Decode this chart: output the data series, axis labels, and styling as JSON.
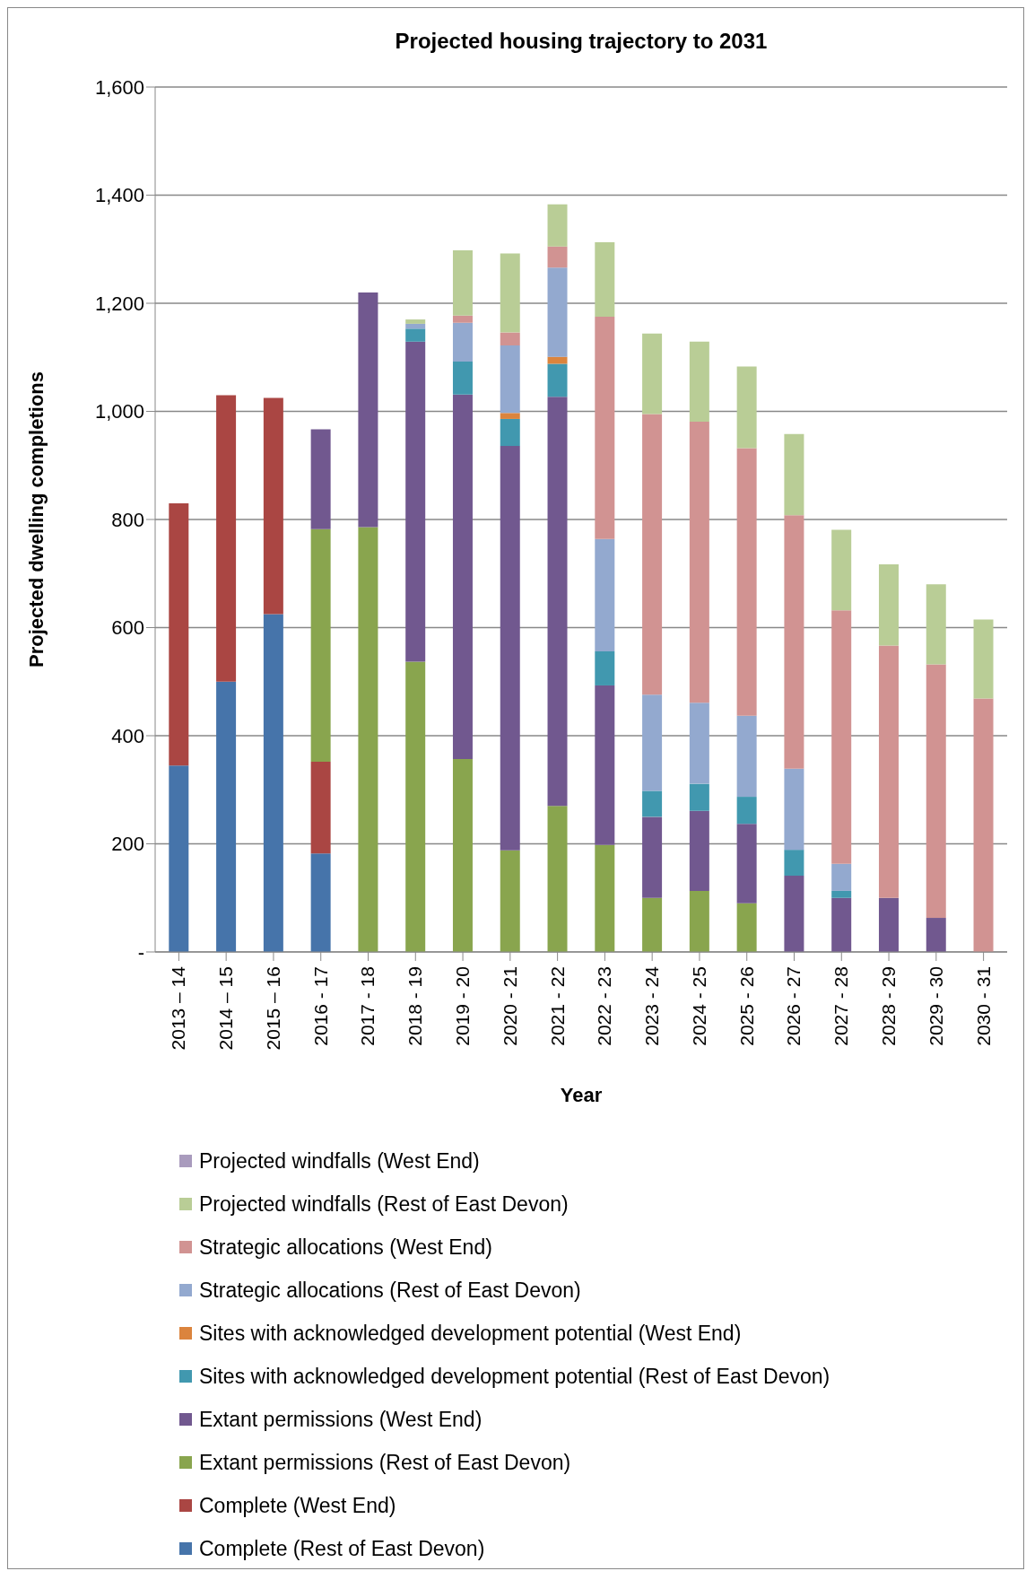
{
  "chart_data": {
    "type": "bar",
    "title": "Projected housing trajectory to 2031",
    "xlabel": "Year",
    "ylabel": "Projected dwelling completions",
    "stacked": true,
    "grid": "y",
    "legend": "bottom",
    "categories": [
      "2013 – 14",
      "2014 – 15",
      "2015 – 16",
      "2016 - 17",
      "2017 - 18",
      "2018 - 19",
      "2019 - 20",
      "2020 - 21",
      "2021 - 22",
      "2022 - 23",
      "2023 - 24",
      "2024 - 25",
      "2025 - 26",
      "2026 - 27",
      "2027 - 28",
      "2028 - 29",
      "2029 - 30",
      "2030 - 31"
    ],
    "ylim": [
      0,
      1600
    ],
    "yticks": [
      {
        "value": 0,
        "label": "-"
      },
      200,
      400,
      600,
      800,
      {
        "value": 1000,
        "label": "1,000"
      },
      {
        "value": 1200,
        "label": "1,200"
      },
      {
        "value": 1400,
        "label": "1,400"
      },
      {
        "value": 1600,
        "label": "1,600"
      }
    ],
    "series": [
      {
        "name": "Complete (Rest of East Devon)",
        "color": "#4674aa",
        "values": [
          345,
          500,
          625,
          182,
          null,
          null,
          null,
          null,
          null,
          null,
          null,
          null,
          null,
          null,
          null,
          null,
          null,
          null
        ]
      },
      {
        "name": "Complete (West End)",
        "color": "#aa4643",
        "values": [
          485,
          530,
          400,
          170,
          null,
          null,
          null,
          null,
          null,
          null,
          null,
          null,
          null,
          null,
          null,
          null,
          null,
          null
        ]
      },
      {
        "name": "Extant permissions (Rest of East Devon)",
        "color": "#89a54e",
        "values": [
          null,
          null,
          null,
          430,
          786,
          537,
          357,
          188,
          270,
          198,
          100,
          113,
          90,
          null,
          null,
          null,
          null,
          null
        ]
      },
      {
        "name": "Extant permissions (West End)",
        "color": "#71588f",
        "values": [
          null,
          null,
          null,
          185,
          434,
          592,
          674,
          748,
          757,
          295,
          150,
          148,
          147,
          141,
          100,
          100,
          63,
          null
        ]
      },
      {
        "name": "Sites with acknowledged development potential (Rest of East Devon)",
        "color": "#4198af",
        "values": [
          null,
          null,
          null,
          null,
          null,
          24,
          61,
          50,
          61,
          63,
          48,
          50,
          50,
          48,
          13,
          null,
          null,
          null
        ]
      },
      {
        "name": "Sites with acknowledged development potential (West End)",
        "color": "#db843d",
        "values": [
          null,
          null,
          null,
          null,
          null,
          null,
          null,
          11,
          13,
          null,
          null,
          null,
          null,
          null,
          null,
          null,
          null,
          null
        ]
      },
      {
        "name": "Strategic allocations (Rest of East Devon)",
        "color": "#93a9cf",
        "values": [
          null,
          null,
          null,
          null,
          null,
          9,
          72,
          125,
          165,
          208,
          178,
          150,
          150,
          150,
          50,
          null,
          null,
          null
        ]
      },
      {
        "name": "Strategic allocations (West End)",
        "color": "#d19392",
        "values": [
          null,
          null,
          null,
          null,
          null,
          null,
          13,
          24,
          39,
          411,
          519,
          520,
          495,
          469,
          469,
          467,
          469,
          469
        ]
      },
      {
        "name": "Projected windfalls (Rest of East Devon)",
        "color": "#b9cd96",
        "values": [
          null,
          null,
          null,
          null,
          null,
          8,
          121,
          146,
          78,
          138,
          149,
          148,
          151,
          150,
          149,
          150,
          148,
          146
        ]
      },
      {
        "name": "Projected windfalls (West End)",
        "color": "#a99bbd",
        "values": [
          null,
          null,
          null,
          null,
          null,
          null,
          null,
          null,
          null,
          null,
          null,
          null,
          null,
          null,
          null,
          null,
          null,
          null
        ]
      }
    ]
  }
}
